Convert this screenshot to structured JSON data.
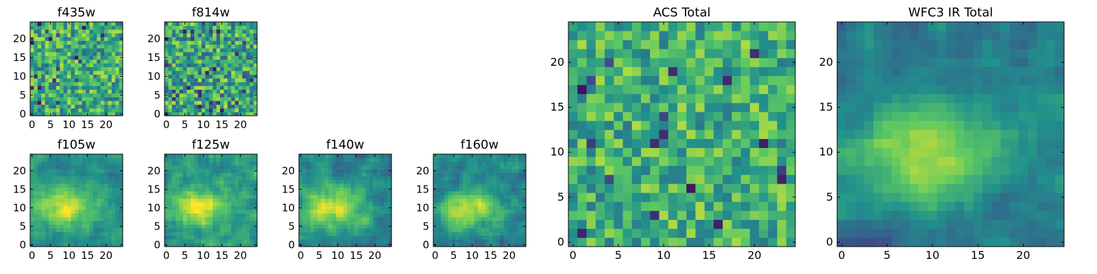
{
  "colormap": {
    "name": "viridis",
    "stops": [
      "#440154",
      "#3b528b",
      "#21918c",
      "#5ec962",
      "#fde725"
    ]
  },
  "chart_data": [
    {
      "type": "heatmap",
      "title": "f435w",
      "grid_size": 25,
      "xticks": [
        "0",
        "5",
        "10",
        "15",
        "20"
      ],
      "yticks": [
        "0",
        "5",
        "10",
        "15",
        "20"
      ],
      "texture": "noise",
      "seed": 11,
      "scale": 1.0,
      "base": 0.62,
      "spread": 0.25
    },
    {
      "type": "heatmap",
      "title": "f814w",
      "grid_size": 25,
      "xticks": [
        "0",
        "5",
        "10",
        "15",
        "20"
      ],
      "yticks": [
        "0",
        "5",
        "10",
        "15",
        "20"
      ],
      "texture": "noise",
      "seed": 23,
      "scale": 1.0,
      "base": 0.6,
      "spread": 0.27
    },
    {
      "type": "heatmap",
      "title": "f105w",
      "grid_size": 25,
      "xticks": [
        "0",
        "5",
        "10",
        "15",
        "20"
      ],
      "yticks": [
        "0",
        "5",
        "10",
        "15",
        "20"
      ],
      "texture": "blob",
      "seed": 37,
      "scale": 2.0,
      "base": 0.5,
      "spread": 0.18
    },
    {
      "type": "heatmap",
      "title": "f125w",
      "grid_size": 25,
      "xticks": [
        "0",
        "5",
        "10",
        "15",
        "20"
      ],
      "yticks": [
        "0",
        "5",
        "10",
        "15",
        "20"
      ],
      "texture": "blob",
      "seed": 41,
      "scale": 1.5,
      "base": 0.52,
      "spread": 0.22
    },
    {
      "type": "heatmap",
      "title": "f140w",
      "grid_size": 25,
      "xticks": [
        "0",
        "5",
        "10",
        "15",
        "20"
      ],
      "yticks": [
        "0",
        "5",
        "10",
        "15",
        "20"
      ],
      "texture": "blob",
      "seed": 53,
      "scale": 2.0,
      "base": 0.48,
      "spread": 0.2
    },
    {
      "type": "heatmap",
      "title": "f160w",
      "grid_size": 25,
      "xticks": [
        "0",
        "5",
        "10",
        "15",
        "20"
      ],
      "yticks": [
        "0",
        "5",
        "10",
        "15",
        "20"
      ],
      "texture": "blob",
      "seed": 67,
      "scale": 1.5,
      "base": 0.46,
      "spread": 0.2
    },
    {
      "type": "heatmap",
      "title": "ACS Total",
      "grid_size": 25,
      "xticks": [
        "0",
        "5",
        "10",
        "15",
        "20"
      ],
      "yticks": [
        "0",
        "5",
        "10",
        "15",
        "20"
      ],
      "texture": "noise",
      "seed": 79,
      "scale": 1.0,
      "base": 0.64,
      "spread": 0.22
    },
    {
      "type": "heatmap",
      "title": "WFC3 IR Total",
      "grid_size": 25,
      "xticks": [
        "0",
        "5",
        "10",
        "15",
        "20"
      ],
      "yticks": [
        "0",
        "5",
        "10",
        "15",
        "20"
      ],
      "texture": "blob",
      "seed": 97,
      "scale": 2.0,
      "base": 0.42,
      "spread": 0.16
    }
  ]
}
